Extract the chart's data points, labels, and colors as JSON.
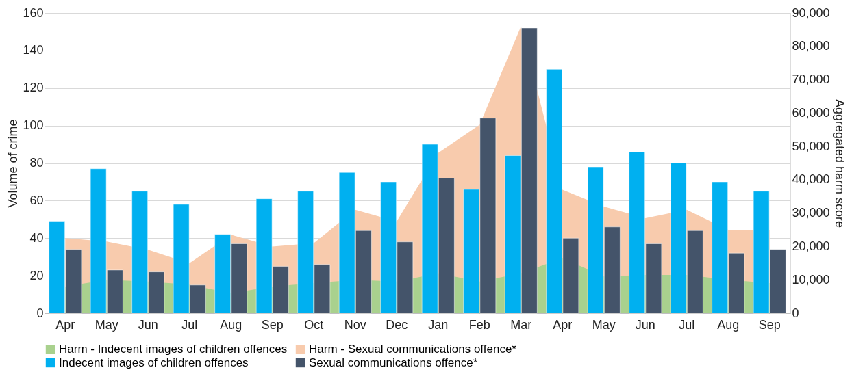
{
  "chart_data": {
    "type": "bar",
    "ylabel": "Volume of crime",
    "y2label": "Aggregated harm score",
    "categories": [
      "Apr",
      "May",
      "Jun",
      "Jul",
      "Aug",
      "Sep",
      "Oct",
      "Nov",
      "Dec",
      "Jan",
      "Feb",
      "Mar",
      "Apr",
      "May",
      "Jun",
      "Jul",
      "Aug",
      "Sep"
    ],
    "series": [
      {
        "name": "Harm - Indecent images of children offences",
        "type": "area",
        "axis": "y2",
        "color": "#a9d18e",
        "values": [
          8000,
          10000,
          9500,
          8500,
          6000,
          8000,
          9000,
          10000,
          9500,
          12000,
          9500,
          12000,
          16500,
          11000,
          11500,
          11500,
          10000,
          9000
        ]
      },
      {
        "name": "Harm - Sexual communications offence*",
        "type": "area",
        "axis": "y2",
        "color": "#f8cbad",
        "values": [
          22500,
          21500,
          19000,
          15000,
          23500,
          20000,
          21000,
          31000,
          27500,
          48000,
          56500,
          86000,
          37000,
          32000,
          28500,
          31000,
          25000,
          25000
        ]
      },
      {
        "name": "Indecent images of children offences",
        "axis": "y",
        "color": "#00b0f0",
        "values": [
          49,
          77,
          65,
          58,
          42,
          61,
          65,
          75,
          70,
          90,
          66,
          84,
          130,
          78,
          86,
          80,
          70,
          65
        ]
      },
      {
        "name": "Sexual communications offence*",
        "axis": "y",
        "color": "#44546a",
        "values": [
          34,
          23,
          22,
          15,
          37,
          25,
          26,
          44,
          38,
          72,
          104,
          152,
          40,
          46,
          37,
          44,
          32,
          34
        ]
      }
    ],
    "ylim": [
      0,
      160
    ],
    "yticks": [
      0,
      20,
      40,
      60,
      80,
      100,
      120,
      140,
      160
    ],
    "y2lim": [
      0,
      90000
    ],
    "y2ticks": [
      0,
      {
        "value": 10000,
        "label": "10,000"
      },
      {
        "value": 20000,
        "label": "20,000"
      },
      {
        "value": 30000,
        "label": "30,000"
      },
      {
        "value": 40000,
        "label": "40,000"
      },
      {
        "value": 50000,
        "label": "50,000"
      },
      {
        "value": 60000,
        "label": "60,000"
      },
      {
        "value": 70000,
        "label": "70,000"
      },
      {
        "value": 80000,
        "label": "80,000"
      },
      {
        "value": 90000,
        "label": "90,000"
      }
    ],
    "grid": "y",
    "legend": "bottom"
  }
}
